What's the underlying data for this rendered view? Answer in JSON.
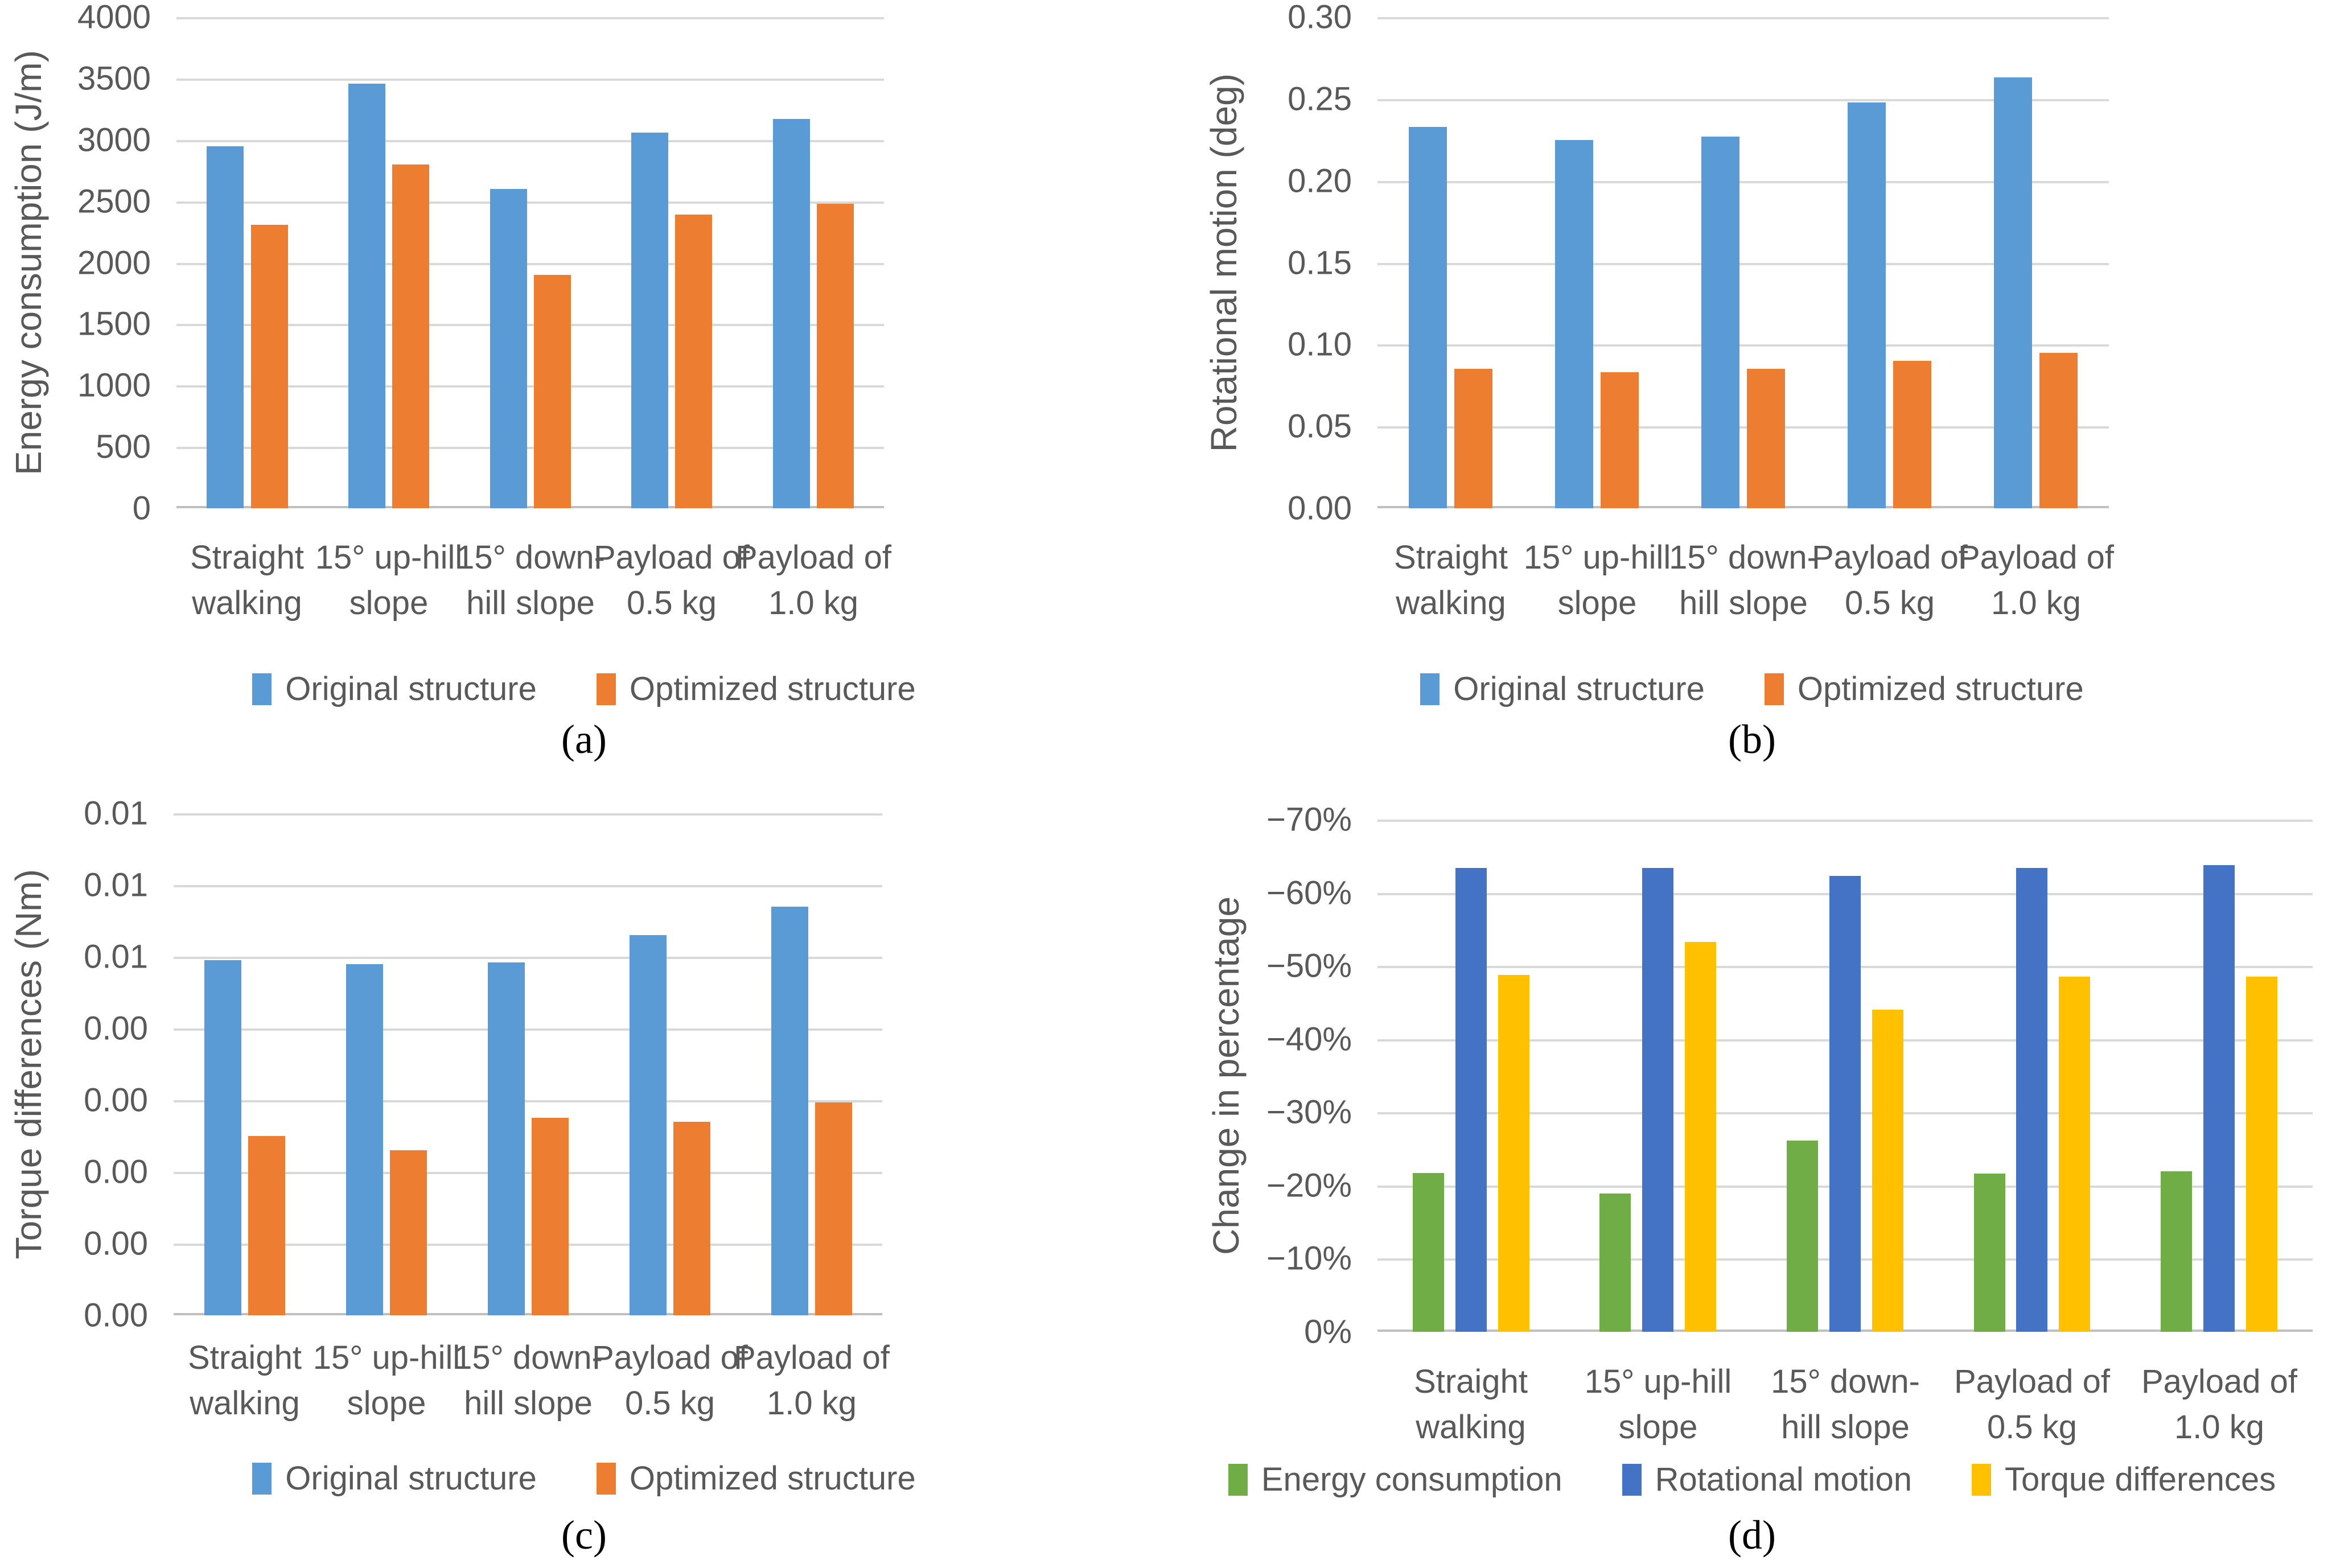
{
  "figure": {
    "background_color": "#ffffff",
    "gridline_color": "#d9d9d9",
    "axis_line_color": "#bfbfbf",
    "text_color": "#595959",
    "caption_color": "#000000"
  },
  "chart_data": [
    {
      "type": "bar",
      "caption": "(a)",
      "ylabel": "Energy consumption (J/m)",
      "xlabel": "",
      "title": "",
      "categories": [
        "Straight\nwalking",
        "15° up-hill\nslope",
        "15° down-\nhill slope",
        "Payload of\n0.5 kg",
        "Payload of\n1.0 kg"
      ],
      "series": [
        {
          "name": "Original structure",
          "color": "#5B9BD5",
          "values": [
            2950,
            3460,
            2600,
            3060,
            3170
          ]
        },
        {
          "name": "Optimized structure",
          "color": "#ED7D31",
          "values": [
            2310,
            2800,
            1900,
            2390,
            2480
          ]
        }
      ],
      "ylim": [
        0,
        4000
      ],
      "ytick_step": 500,
      "ytick_labels": [
        "4000",
        "3500",
        "3000",
        "2500",
        "2000",
        "1500",
        "1000",
        "500",
        "0"
      ],
      "grid": true,
      "legend_position": "bottom"
    },
    {
      "type": "bar",
      "caption": "(b)",
      "ylabel": "Rotational motion (deg)",
      "xlabel": "",
      "title": "",
      "categories": [
        "Straight\nwalking",
        "15° up-hill\nslope",
        "15° down-\nhill slope",
        "Payload of\n0.5 kg",
        "Payload of\n1.0 kg"
      ],
      "series": [
        {
          "name": "Original structure",
          "color": "#5B9BD5",
          "values": [
            0.233,
            0.225,
            0.227,
            0.248,
            0.263
          ]
        },
        {
          "name": "Optimized structure",
          "color": "#ED7D31",
          "values": [
            0.085,
            0.083,
            0.085,
            0.09,
            0.095
          ]
        }
      ],
      "ylim": [
        0,
        0.3
      ],
      "ytick_step": 0.05,
      "ytick_labels": [
        "0.30",
        "0.25",
        "0.20",
        "0.15",
        "0.10",
        "0.05",
        "0.00"
      ],
      "grid": true,
      "legend_position": "bottom"
    },
    {
      "type": "bar",
      "caption": "(c)",
      "ylabel": "Torque differences (Nm)",
      "xlabel": "",
      "title": "",
      "categories": [
        "Straight\nwalking",
        "15° up-hill\nslope",
        "15° down-\nhill slope",
        "Payload of\n0.5 kg",
        "Payload of\n1.0 kg"
      ],
      "series": [
        {
          "name": "Original structure",
          "color": "#5B9BD5",
          "values": [
            0.00495,
            0.0049,
            0.00492,
            0.0053,
            0.0057
          ]
        },
        {
          "name": "Optimized structure",
          "color": "#ED7D31",
          "values": [
            0.0025,
            0.0023,
            0.00275,
            0.0027,
            0.00297
          ]
        }
      ],
      "ylim": [
        0,
        0.007
      ],
      "ytick_step": 0.001,
      "ytick_labels": [
        "0.01",
        "0.01",
        "0.01",
        "0.00",
        "0.00",
        "0.00",
        "0.00",
        "0.00"
      ],
      "grid": true,
      "legend_position": "bottom"
    },
    {
      "type": "bar",
      "caption": "(d)",
      "ylabel": "Change in percentage",
      "xlabel": "",
      "title": "",
      "categories": [
        "Straight\nwalking",
        "15° up-hill\nslope",
        "15° down-\nhill slope",
        "Payload of\n0.5 kg",
        "Payload of\n1.0 kg"
      ],
      "series": [
        {
          "name": "Energy consumption",
          "color": "#70AD47",
          "values": [
            -21.7,
            -18.9,
            -26.1,
            -21.6,
            -21.9
          ]
        },
        {
          "name": "Rotational motion",
          "color": "#4472C4",
          "values": [
            -63.4,
            -63.4,
            -62.3,
            -63.4,
            -63.8
          ]
        },
        {
          "name": "Torque differences",
          "color": "#FFC000",
          "values": [
            -48.8,
            -53.3,
            -44.0,
            -48.5,
            -48.5
          ]
        }
      ],
      "ylim": [
        0,
        -70
      ],
      "ytick_step": -10,
      "ytick_labels": [
        "−70%",
        "−60%",
        "−50%",
        "−40%",
        "−30%",
        "−20%",
        "−10%",
        "0%"
      ],
      "axis_reversed": true,
      "grid": true,
      "legend_position": "bottom"
    }
  ]
}
